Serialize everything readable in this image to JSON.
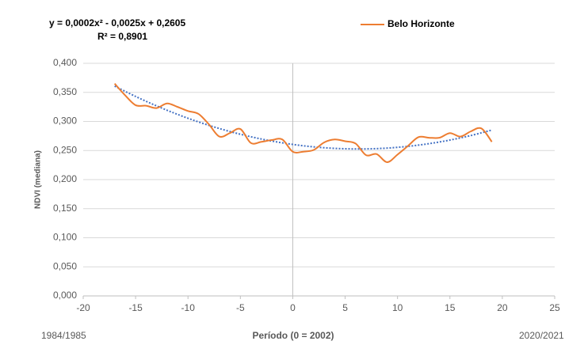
{
  "chart_data": {
    "type": "line",
    "equation": "y = 0,0002x² - 0,0025x + 0,2605",
    "r_squared": "R² = 0,8901",
    "x_label": "Período (0 = 2002)",
    "y_label": "NDVI (mediana)",
    "start_label": "1984/1985",
    "end_label": "2020/2021",
    "legend": "top-right",
    "grid": true,
    "xlim": [
      -20,
      25
    ],
    "xticks": [
      -20,
      -15,
      -10,
      -5,
      0,
      5,
      10,
      15,
      20,
      25
    ],
    "ylim": [
      0,
      0.4
    ],
    "yticks": [
      {
        "value": 0,
        "label": "0,000"
      },
      {
        "value": 0.05,
        "label": "0,050"
      },
      {
        "value": 0.1,
        "label": "0,100"
      },
      {
        "value": 0.15,
        "label": "0,150"
      },
      {
        "value": 0.2,
        "label": "0,200"
      },
      {
        "value": 0.25,
        "label": "0,250"
      },
      {
        "value": 0.3,
        "label": "0,300"
      },
      {
        "value": 0.35,
        "label": "0,350"
      },
      {
        "value": 0.4,
        "label": "0,400"
      }
    ],
    "x": [
      -17,
      -16,
      -15,
      -14,
      -13,
      -12,
      -11,
      -10,
      -9,
      -8,
      -7,
      -6,
      -5,
      -4,
      -3,
      -2,
      -1,
      0,
      1,
      2,
      3,
      4,
      5,
      6,
      7,
      8,
      9,
      10,
      11,
      12,
      13,
      14,
      15,
      16,
      17,
      18,
      19
    ],
    "series": [
      {
        "name": "Belo Horizonte",
        "color": "#ed7d31",
        "values": [
          0.365,
          0.345,
          0.328,
          0.327,
          0.323,
          0.331,
          0.325,
          0.318,
          0.313,
          0.295,
          0.274,
          0.28,
          0.287,
          0.263,
          0.265,
          0.268,
          0.269,
          0.248,
          0.248,
          0.251,
          0.264,
          0.269,
          0.266,
          0.262,
          0.242,
          0.244,
          0.23,
          0.243,
          0.258,
          0.273,
          0.272,
          0.272,
          0.28,
          0.274,
          0.283,
          0.288,
          0.265
        ]
      }
    ],
    "trendline": {
      "color": "#4472c4",
      "x": [
        -17,
        -15,
        -13,
        -11,
        -9,
        -7,
        -5,
        -3,
        -1,
        1,
        3,
        5,
        7,
        9,
        11,
        13,
        15,
        17,
        19
      ],
      "values": [
        0.3608,
        0.343,
        0.3268,
        0.3122,
        0.2992,
        0.2878,
        0.278,
        0.2698,
        0.2632,
        0.2582,
        0.2548,
        0.253,
        0.2528,
        0.2542,
        0.2572,
        0.2618,
        0.268,
        0.2758,
        0.2852
      ]
    }
  }
}
